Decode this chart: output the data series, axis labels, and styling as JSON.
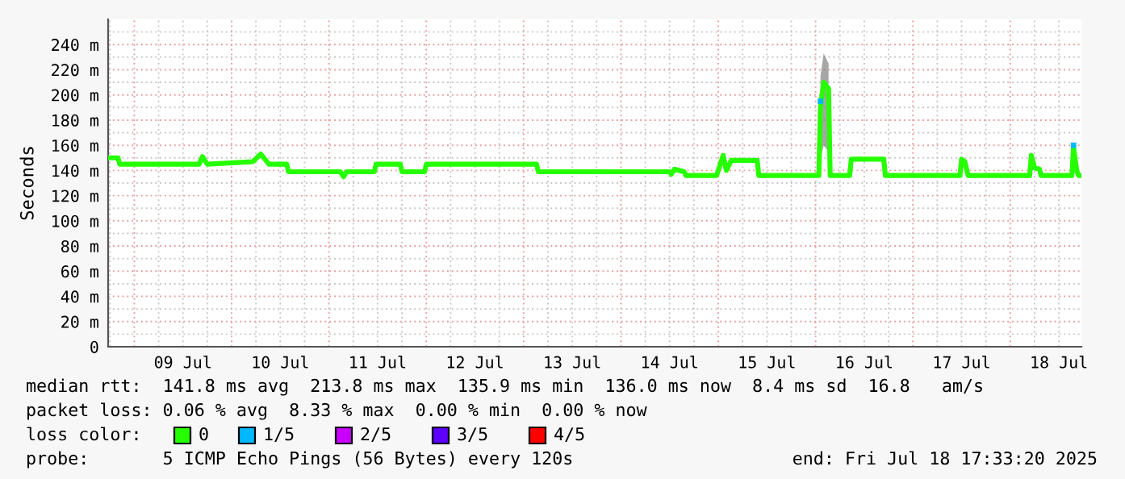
{
  "chart_data": {
    "type": "line",
    "ylabel": "Seconds",
    "legend_title": "loss color:",
    "legend": "bottom",
    "grid": true,
    "line_style": "solid",
    "marker": "none",
    "xlim": [
      "2025-07-08T17:33",
      "2025-07-18T17:33"
    ],
    "xticks": [
      {
        "value": "2025-07-09T12:00",
        "label": "09 Jul"
      },
      {
        "value": "2025-07-10T12:00",
        "label": "10 Jul"
      },
      {
        "value": "2025-07-11T12:00",
        "label": "11 Jul"
      },
      {
        "value": "2025-07-12T12:00",
        "label": "12 Jul"
      },
      {
        "value": "2025-07-13T12:00",
        "label": "13 Jul"
      },
      {
        "value": "2025-07-14T12:00",
        "label": "14 Jul"
      },
      {
        "value": "2025-07-15T12:00",
        "label": "15 Jul"
      },
      {
        "value": "2025-07-16T12:00",
        "label": "16 Jul"
      },
      {
        "value": "2025-07-17T12:00",
        "label": "17 Jul"
      },
      {
        "value": "2025-07-18T12:00",
        "label": "18 Jul"
      }
    ],
    "ylim": [
      0,
      260
    ],
    "yticks": [
      {
        "value": 0,
        "label": "0"
      },
      {
        "value": 20,
        "label": "20 m"
      },
      {
        "value": 40,
        "label": "40 m"
      },
      {
        "value": 60,
        "label": "60 m"
      },
      {
        "value": 80,
        "label": "80 m"
      },
      {
        "value": 100,
        "label": "100 m"
      },
      {
        "value": 120,
        "label": "120 m"
      },
      {
        "value": 140,
        "label": "140 m"
      },
      {
        "value": 160,
        "label": "160 m"
      },
      {
        "value": 180,
        "label": "180 m"
      },
      {
        "value": 200,
        "label": "200 m"
      },
      {
        "value": 220,
        "label": "220 m"
      },
      {
        "value": 240,
        "label": "240 m"
      }
    ],
    "series": [
      {
        "name": "0",
        "color": "#26ff00",
        "x": [
          "2025-07-08T18:00",
          "2025-07-08T20:00",
          "2025-07-08T20:24",
          "2025-07-09T16:00",
          "2025-07-09T16:48",
          "2025-07-09T18:00",
          "2025-07-10T05:12",
          "2025-07-10T07:12",
          "2025-07-10T09:12",
          "2025-07-10T13:36",
          "2025-07-10T14:00",
          "2025-07-11T02:48",
          "2025-07-11T03:36",
          "2025-07-11T04:24",
          "2025-07-11T11:12",
          "2025-07-11T11:36",
          "2025-07-11T17:36",
          "2025-07-11T18:00",
          "2025-07-11T23:36",
          "2025-07-12T00:00",
          "2025-07-13T03:12",
          "2025-07-13T03:36",
          "2025-07-14T12:00",
          "2025-07-14T12:24",
          "2025-07-14T13:12",
          "2025-07-14T15:36",
          "2025-07-14T16:00",
          "2025-07-14T23:36",
          "2025-07-15T00:24",
          "2025-07-15T01:12",
          "2025-07-15T02:00",
          "2025-07-15T03:12",
          "2025-07-15T09:36",
          "2025-07-15T10:00",
          "2025-07-16T00:48",
          "2025-07-16T01:12",
          "2025-07-16T02:00",
          "2025-07-16T03:12",
          "2025-07-16T03:36",
          "2025-07-16T08:24",
          "2025-07-16T08:48",
          "2025-07-16T16:48",
          "2025-07-16T17:12",
          "2025-07-17T11:36",
          "2025-07-17T12:00",
          "2025-07-17T12:48",
          "2025-07-17T13:36",
          "2025-07-18T04:48",
          "2025-07-18T05:12",
          "2025-07-18T06:00",
          "2025-07-18T07:12",
          "2025-07-18T07:36",
          "2025-07-18T15:12",
          "2025-07-18T15:36",
          "2025-07-18T16:24",
          "2025-07-18T16:48",
          "2025-07-18T17:33"
        ],
        "values": [
          150,
          150,
          145,
          145,
          151,
          145,
          147,
          153,
          145,
          145,
          139,
          139,
          135,
          139,
          139,
          145,
          145,
          139,
          139,
          145,
          145,
          139,
          139,
          137,
          141,
          139,
          136,
          136,
          144,
          152,
          140,
          148,
          148,
          136,
          136,
          190,
          210,
          205,
          136,
          136,
          149,
          149,
          136,
          136,
          149,
          147,
          136,
          136,
          152,
          142,
          141,
          136,
          136,
          158,
          140,
          136,
          136
        ],
        "lower": [
          null,
          null,
          null,
          null,
          null,
          null,
          null,
          null,
          null,
          null,
          null,
          null,
          null,
          null,
          null,
          null,
          null,
          null,
          null,
          null,
          null,
          null,
          null,
          null,
          null,
          null,
          null,
          null,
          null,
          null,
          null,
          null,
          null,
          null,
          null,
          150,
          160,
          155,
          null,
          null,
          null,
          null,
          null,
          null,
          null,
          null,
          null,
          null,
          null,
          null,
          null,
          null,
          null,
          null,
          null,
          null,
          null
        ],
        "upper": [
          null,
          null,
          null,
          null,
          null,
          null,
          null,
          null,
          null,
          null,
          null,
          null,
          null,
          null,
          null,
          null,
          null,
          null,
          null,
          null,
          null,
          null,
          null,
          null,
          null,
          null,
          null,
          null,
          null,
          null,
          null,
          null,
          null,
          null,
          null,
          215,
          233,
          225,
          null,
          null,
          null,
          null,
          null,
          null,
          null,
          null,
          null,
          null,
          null,
          null,
          null,
          null,
          null,
          null,
          null,
          null,
          null
        ]
      },
      {
        "name": "1/5",
        "type": "scatter",
        "marker": "square",
        "color": "#00b8ff",
        "x": [
          "2025-07-16T01:12",
          "2025-07-18T15:36"
        ],
        "values": [
          195,
          160
        ]
      },
      {
        "name": "2/5",
        "color": "#c800ff"
      },
      {
        "name": "3/5",
        "color": "#5e00ff"
      },
      {
        "name": "4/5",
        "color": "#ff0000"
      }
    ],
    "annotations": [
      "median rtt:  141.8 ms avg  213.8 ms max  135.9 ms min  136.0 ms now  8.4 ms sd  16.8   am/s",
      "packet loss: 0.06 % avg  8.33 % max  0.00 % min  0.00 % now",
      "probe:       5 ICMP Echo Pings (56 Bytes) every 120s",
      "end: Fri Jul 18 17:33:20 2025"
    ]
  }
}
